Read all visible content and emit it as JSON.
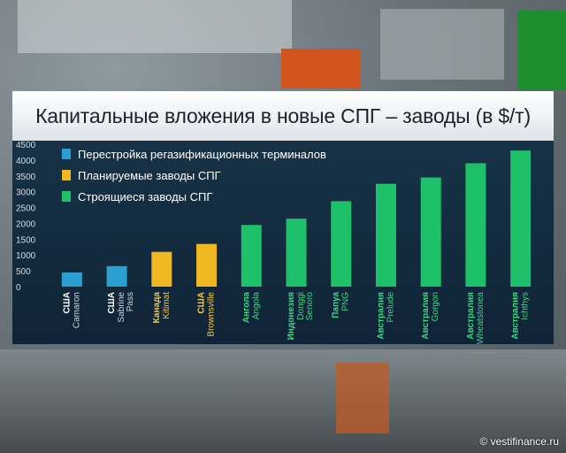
{
  "title": "Капитальные вложения в новые СПГ – заводы (в $/т)",
  "credit": "© vestifinance.ru",
  "colors": {
    "regas": "#2a9fd0",
    "planned": "#f0b820",
    "building": "#1fc06a",
    "background_panel": "#15304a"
  },
  "chart_data": {
    "type": "bar",
    "title": "Капитальные вложения в новые СПГ – заводы (в $/т)",
    "xlabel": "",
    "ylabel": "",
    "ylim": [
      0,
      4500
    ],
    "yticks": [
      0,
      500,
      1000,
      1500,
      2000,
      2500,
      3000,
      3500,
      4000,
      4500
    ],
    "legend_position": "top-left",
    "legend": [
      {
        "label": "Перестройка регазификационных терминалов",
        "color_key": "regas"
      },
      {
        "label": "Планируемые заводы СПГ",
        "color_key": "planned"
      },
      {
        "label": "Строящиеся заводы СПГ",
        "color_key": "building"
      }
    ],
    "bars": [
      {
        "country": "США",
        "project": "Camaron",
        "value": 450,
        "group": "regas"
      },
      {
        "country": "США",
        "project": "Sabrine Pass",
        "value": 650,
        "group": "regas"
      },
      {
        "country": "Канада",
        "project": "Kitimat",
        "value": 1100,
        "group": "planned"
      },
      {
        "country": "США",
        "project": "Brownsville",
        "value": 1350,
        "group": "planned"
      },
      {
        "country": "Ангола",
        "project": "Angola",
        "value": 1950,
        "group": "building"
      },
      {
        "country": "Индонезия",
        "project": "Donggi Senoro",
        "value": 2150,
        "group": "building"
      },
      {
        "country": "Папуа",
        "project": "PNG",
        "value": 2700,
        "group": "building"
      },
      {
        "country": "Австралия",
        "project": "Prelude",
        "value": 3250,
        "group": "building"
      },
      {
        "country": "Австралия",
        "project": "Gorgon",
        "value": 3450,
        "group": "building"
      },
      {
        "country": "Австралия",
        "project": "Wheatstonea",
        "value": 3900,
        "group": "building"
      },
      {
        "country": "Австралия",
        "project": "Ichthys",
        "value": 4300,
        "group": "building"
      }
    ]
  }
}
